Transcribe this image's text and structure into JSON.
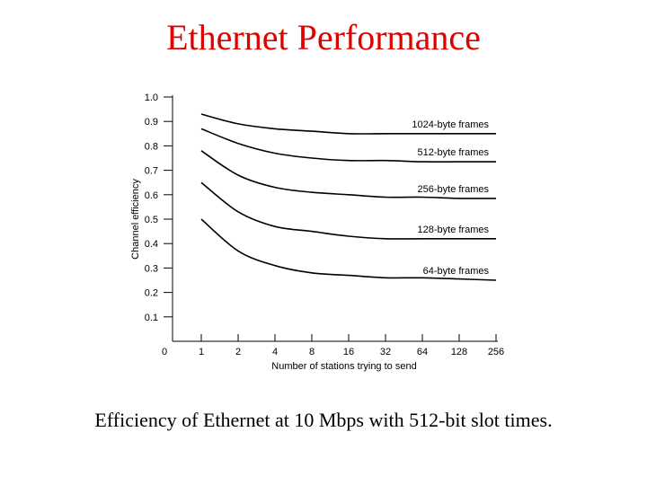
{
  "slide": {
    "title": "Ethernet Performance",
    "caption": "Efficiency of Ethernet at 10 Mbps with 512-bit slot times."
  },
  "colors": {
    "title": "#e00000",
    "series": "#000000"
  },
  "chart_data": {
    "type": "line",
    "title": "",
    "xlabel": "Number of stations trying to send",
    "ylabel": "Channel efficiency",
    "x_scale": "log2",
    "x_ticks": [
      "0",
      "1",
      "2",
      "4",
      "8",
      "16",
      "32",
      "64",
      "128",
      "256"
    ],
    "y_ticks": [
      "0.1",
      "0.2",
      "0.3",
      "0.4",
      "0.5",
      "0.6",
      "0.7",
      "0.8",
      "0.9",
      "1.0"
    ],
    "ylim": [
      0,
      1.0
    ],
    "grid": false,
    "legend": "inline labels at right end of each curve",
    "x": [
      1,
      2,
      4,
      8,
      16,
      32,
      64,
      128,
      256
    ],
    "series": [
      {
        "name": "1024-byte frames",
        "values": [
          0.93,
          0.89,
          0.87,
          0.86,
          0.85,
          0.85,
          0.85,
          0.85,
          0.85
        ]
      },
      {
        "name": "512-byte frames",
        "values": [
          0.87,
          0.81,
          0.77,
          0.75,
          0.74,
          0.74,
          0.735,
          0.735,
          0.735
        ]
      },
      {
        "name": "256-byte frames",
        "values": [
          0.78,
          0.68,
          0.63,
          0.61,
          0.6,
          0.59,
          0.59,
          0.585,
          0.585
        ]
      },
      {
        "name": "128-byte frames",
        "values": [
          0.65,
          0.53,
          0.47,
          0.45,
          0.43,
          0.42,
          0.42,
          0.42,
          0.42
        ]
      },
      {
        "name": "64-byte frames",
        "values": [
          0.5,
          0.37,
          0.31,
          0.28,
          0.27,
          0.26,
          0.26,
          0.255,
          0.25
        ]
      }
    ]
  }
}
